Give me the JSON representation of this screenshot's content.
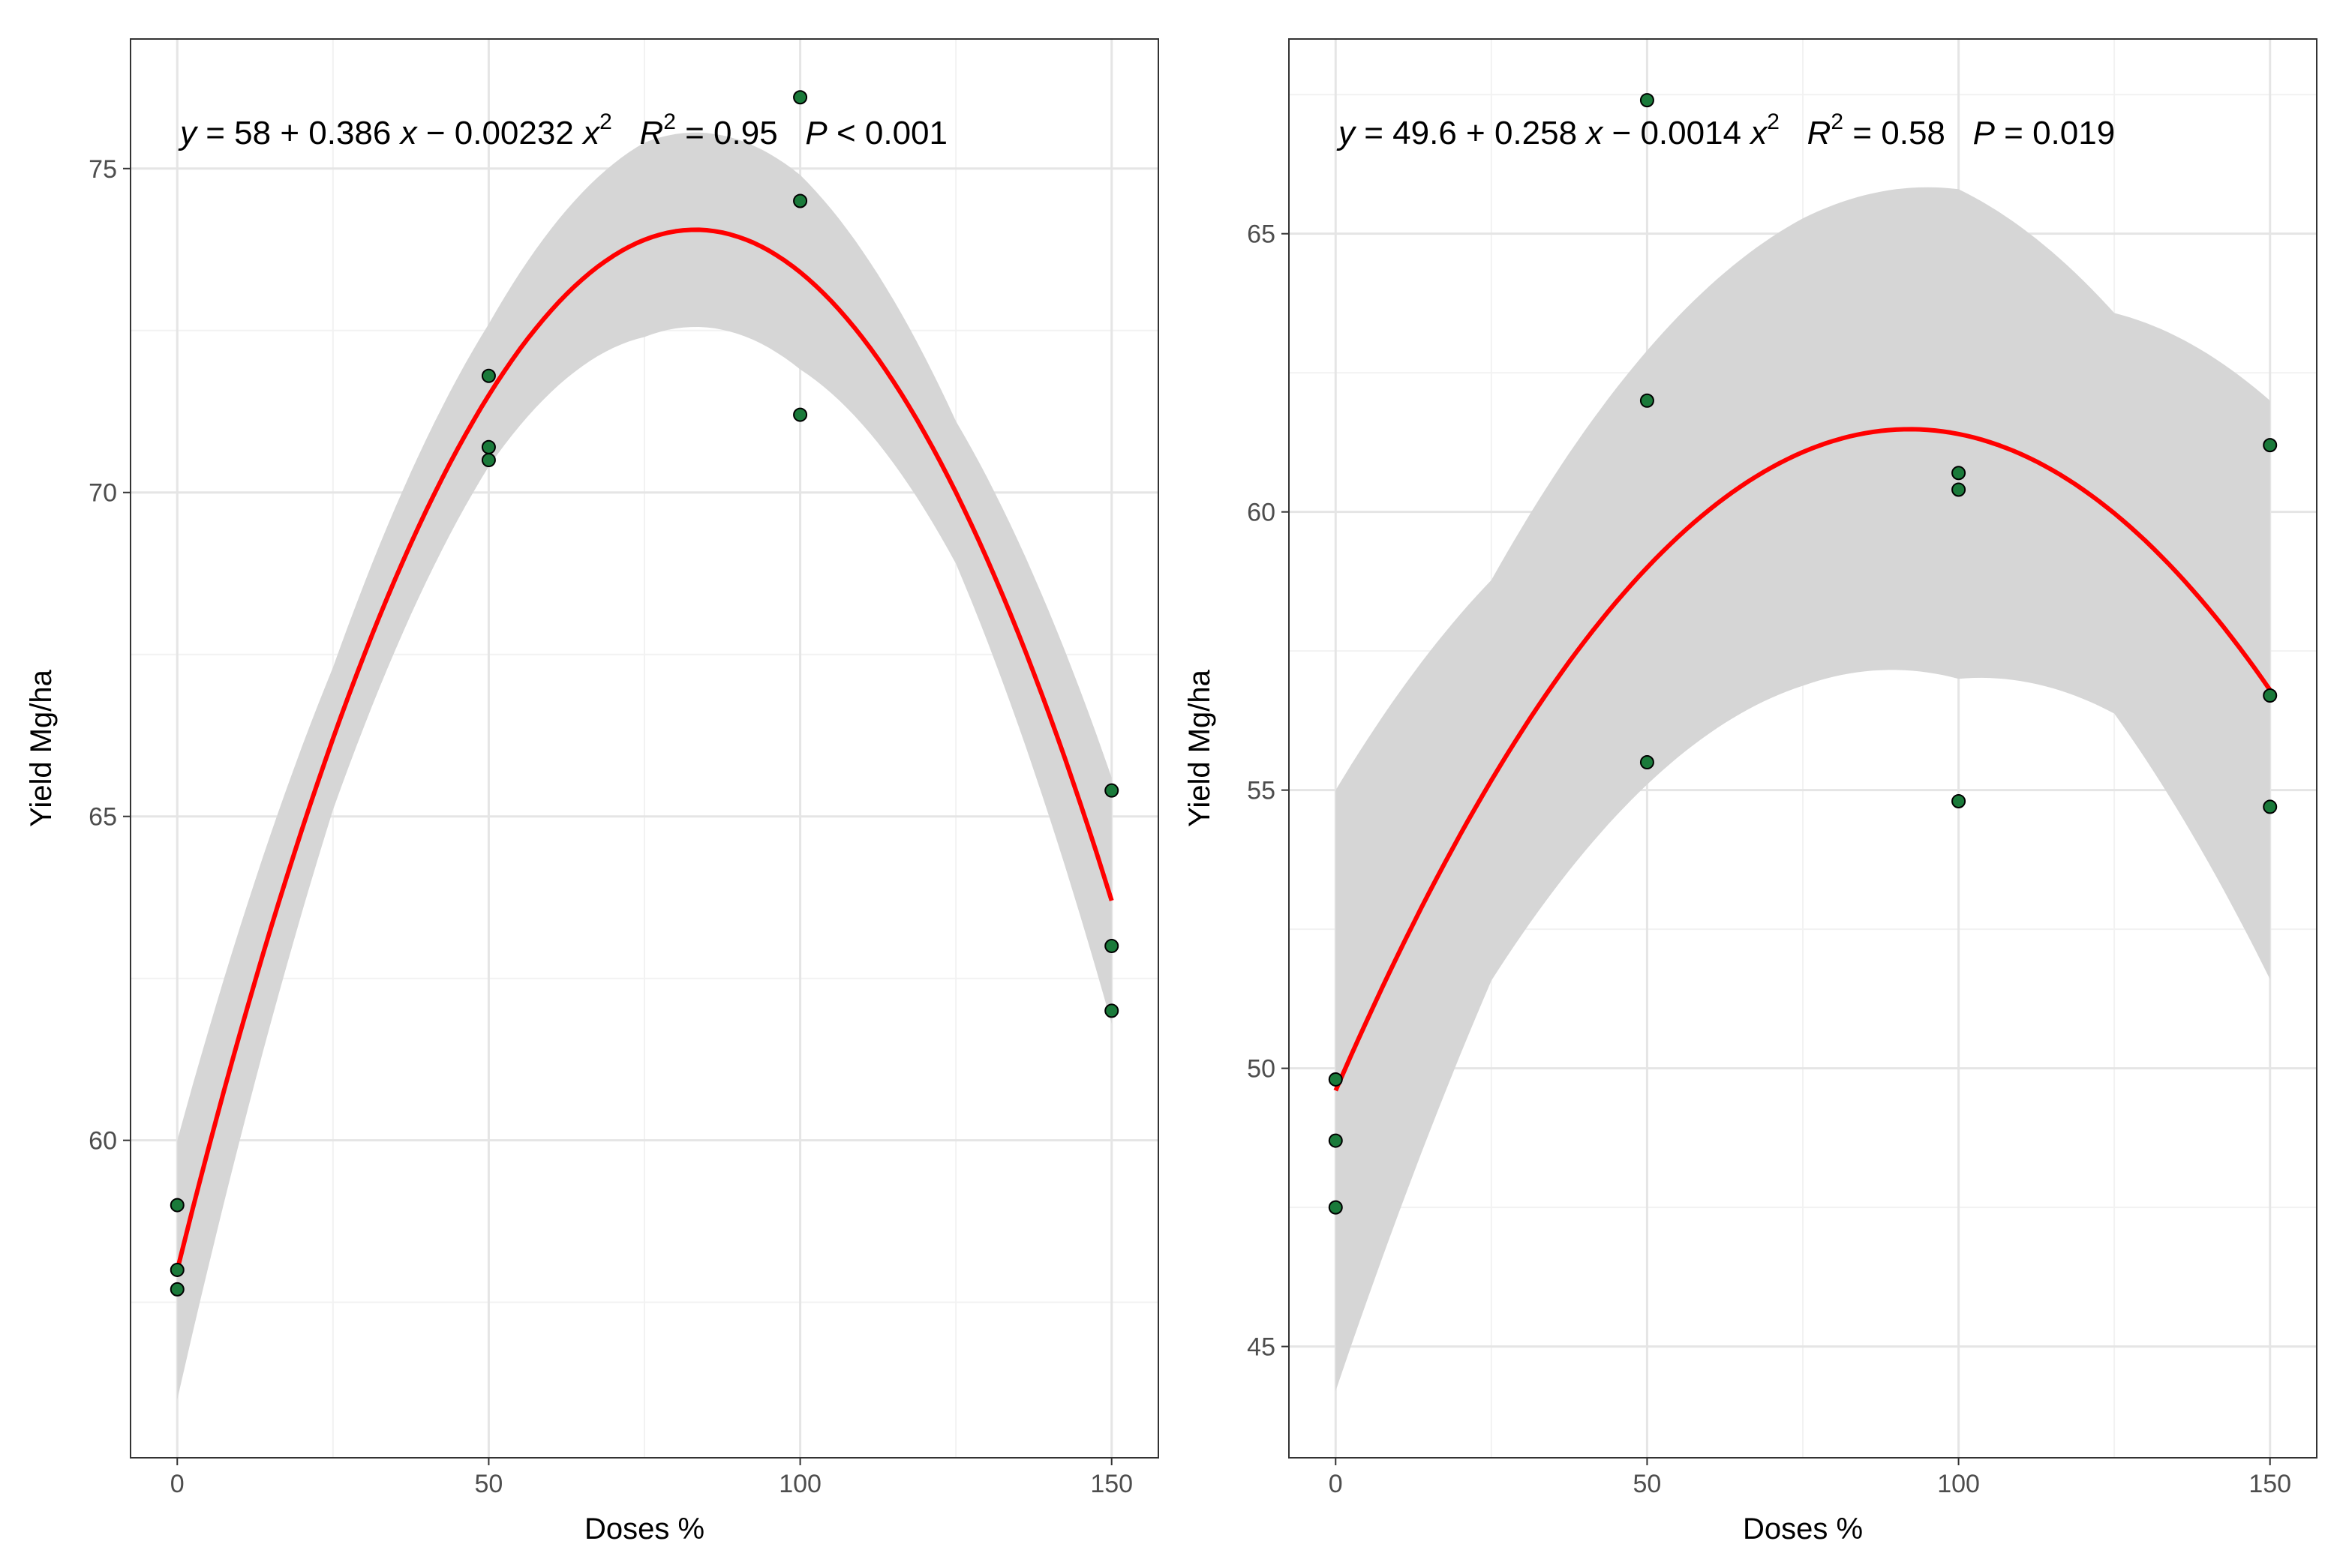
{
  "chart_data": [
    {
      "type": "scatter",
      "title": "",
      "xlabel": "Doses %",
      "ylabel": "Yield Mg/ha",
      "xlim": [
        -7.5,
        157.5
      ],
      "ylim": [
        55.1,
        77.0
      ],
      "x_ticks": [
        0,
        50,
        100,
        150
      ],
      "y_ticks": [
        60,
        65,
        70,
        75
      ],
      "x_tick_labels": [
        "0",
        "50",
        "100",
        "150"
      ],
      "y_tick_labels": [
        "60",
        "65",
        "70",
        "75"
      ],
      "grid": true,
      "equation": {
        "y_var": "y",
        "eq_sign": " = ",
        "intercept": "58",
        "plus": " + ",
        "b1": "0.386",
        "x_var": "x",
        "minus": " − ",
        "b2": "0.00232",
        "x2_var": "x",
        "x2_exp": "2",
        "r_var": "R",
        "r_exp": "2",
        "r_rest": " = 0.95",
        "p_var": "P",
        "p_rest": " < 0.001"
      },
      "coefficients": [
        58,
        0.386,
        -0.00232
      ],
      "band_halfwidth": [
        [
          0,
          2.0
        ],
        [
          25,
          1.1
        ],
        [
          50,
          1.1
        ],
        [
          75,
          1.5
        ],
        [
          100,
          1.5
        ],
        [
          125,
          1.1
        ],
        [
          150,
          1.9
        ]
      ],
      "points": [
        {
          "x": 0,
          "y": 59.0
        },
        {
          "x": 0,
          "y": 58.0
        },
        {
          "x": 0,
          "y": 57.7
        },
        {
          "x": 50,
          "y": 71.8
        },
        {
          "x": 50,
          "y": 70.7
        },
        {
          "x": 50,
          "y": 70.5
        },
        {
          "x": 100,
          "y": 76.1
        },
        {
          "x": 100,
          "y": 74.5
        },
        {
          "x": 100,
          "y": 71.2
        },
        {
          "x": 150,
          "y": 65.4
        },
        {
          "x": 150,
          "y": 63.0
        },
        {
          "x": 150,
          "y": 62.0
        }
      ],
      "colors": {
        "line": "#ff0000",
        "band": "#d6d6d6",
        "point_fill": "#1a7a3a",
        "point_edge": "#000000"
      }
    },
    {
      "type": "scatter",
      "title": "",
      "xlabel": "Doses %",
      "ylabel": "Yield Mg/ha",
      "xlim": [
        -7.5,
        157.5
      ],
      "ylim": [
        43.0,
        68.5
      ],
      "x_ticks": [
        0,
        50,
        100,
        150
      ],
      "y_ticks": [
        45,
        50,
        55,
        60,
        65
      ],
      "x_tick_labels": [
        "0",
        "50",
        "100",
        "150"
      ],
      "y_tick_labels": [
        "45",
        "50",
        "55",
        "60",
        "65"
      ],
      "grid": true,
      "equation": {
        "y_var": "y",
        "eq_sign": " = ",
        "intercept": "49.6",
        "plus": " + ",
        "b1": "0.258",
        "x_var": "x",
        "minus": " − ",
        "b2": "0.0014",
        "x2_var": "x",
        "x2_exp": "2",
        "r_var": "R",
        "r_exp": "2",
        "r_rest": " = 0.58",
        "p_var": "P",
        "p_rest": " = 0.019"
      },
      "coefficients": [
        49.6,
        0.258,
        -0.0014
      ],
      "band_halfwidth": [
        [
          0,
          5.4
        ],
        [
          25,
          3.6
        ],
        [
          50,
          3.9
        ],
        [
          75,
          4.2
        ],
        [
          100,
          4.4
        ],
        [
          125,
          3.6
        ],
        [
          150,
          5.2
        ]
      ],
      "points": [
        {
          "x": 0,
          "y": 49.8
        },
        {
          "x": 0,
          "y": 48.7
        },
        {
          "x": 0,
          "y": 47.5
        },
        {
          "x": 50,
          "y": 67.4
        },
        {
          "x": 50,
          "y": 62.0
        },
        {
          "x": 50,
          "y": 55.5
        },
        {
          "x": 100,
          "y": 60.7
        },
        {
          "x": 100,
          "y": 60.4
        },
        {
          "x": 100,
          "y": 54.8
        },
        {
          "x": 150,
          "y": 61.2
        },
        {
          "x": 150,
          "y": 56.7
        },
        {
          "x": 150,
          "y": 54.7
        }
      ],
      "colors": {
        "line": "#ff0000",
        "band": "#d6d6d6",
        "point_fill": "#1a7a3a",
        "point_edge": "#000000"
      }
    }
  ]
}
